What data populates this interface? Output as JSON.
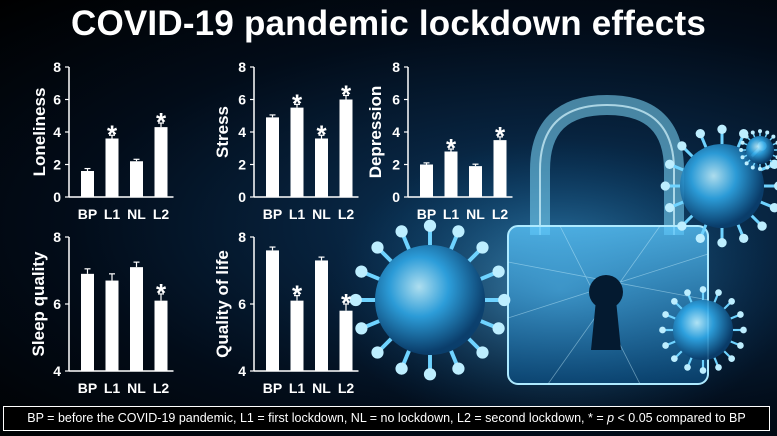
{
  "title": "COVID-19 pandemic lockdown effects",
  "footnote": {
    "part1": "BP = before the COVID-19 pandemic, L1 = first lockdown, NL = no lockdown, L2 = second lockdown, * = ",
    "p": "p",
    "part2": " < 0.05 compared to BP"
  },
  "colors": {
    "bar": "#ffffff",
    "axis": "#ffffff",
    "text": "#ffffff",
    "background": "#020c19",
    "glow": "#3ab8ff"
  },
  "illustration": {
    "icons": [
      "padlock-icon",
      "virus-icon"
    ]
  },
  "chart_data": [
    {
      "type": "bar",
      "ylabel": "Loneliness",
      "categories": [
        "BP",
        "L1",
        "NL",
        "L2"
      ],
      "values": [
        1.6,
        3.6,
        2.2,
        4.3
      ],
      "errors": [
        0.15,
        0.2,
        0.12,
        0.25
      ],
      "significant": [
        false,
        true,
        false,
        true
      ],
      "ylim": [
        0,
        8
      ],
      "yticks": [
        "0",
        "2",
        "4",
        "6",
        "8"
      ]
    },
    {
      "type": "bar",
      "ylabel": "Stress",
      "categories": [
        "BP",
        "L1",
        "NL",
        "L2"
      ],
      "values": [
        4.9,
        5.5,
        3.6,
        6.0
      ],
      "errors": [
        0.15,
        0.2,
        0.2,
        0.25
      ],
      "significant": [
        false,
        true,
        true,
        true
      ],
      "ylim": [
        0,
        8
      ],
      "yticks": [
        "0",
        "2",
        "4",
        "6",
        "8"
      ]
    },
    {
      "type": "bar",
      "ylabel": "Depression",
      "categories": [
        "BP",
        "L1",
        "NL",
        "L2"
      ],
      "values": [
        2.0,
        2.8,
        1.9,
        3.5
      ],
      "errors": [
        0.1,
        0.15,
        0.12,
        0.2
      ],
      "significant": [
        false,
        true,
        false,
        true
      ],
      "ylim": [
        0,
        8
      ],
      "yticks": [
        "0",
        "2",
        "4",
        "6",
        "8"
      ]
    },
    {
      "type": "bar",
      "ylabel": "Sleep quality",
      "categories": [
        "BP",
        "L1",
        "NL",
        "L2"
      ],
      "values": [
        6.9,
        6.7,
        7.1,
        6.1
      ],
      "errors": [
        0.15,
        0.2,
        0.15,
        0.2
      ],
      "significant": [
        false,
        false,
        false,
        true
      ],
      "ylim": [
        4,
        8
      ],
      "yticks": [
        "4",
        "6",
        "8"
      ]
    },
    {
      "type": "bar",
      "ylabel": "Quality of life",
      "categories": [
        "BP",
        "L1",
        "NL",
        "L2"
      ],
      "values": [
        7.6,
        6.1,
        7.3,
        5.8
      ],
      "errors": [
        0.1,
        0.15,
        0.1,
        0.2
      ],
      "significant": [
        false,
        true,
        false,
        true
      ],
      "ylim": [
        4,
        8
      ],
      "yticks": [
        "4",
        "6",
        "8"
      ]
    }
  ]
}
